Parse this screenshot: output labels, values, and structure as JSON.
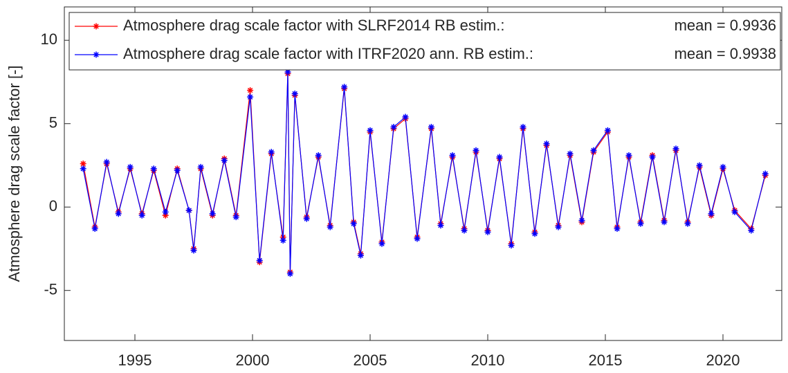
{
  "chart_data": {
    "type": "line",
    "y_label": "Atmosphere drag scale factor [-]",
    "xlim": [
      1992,
      2022.5
    ],
    "xticks": [
      1995,
      2000,
      2005,
      2010,
      2015,
      2020
    ],
    "ylim": [
      -8,
      12
    ],
    "yticks": [
      -5,
      0,
      5,
      10
    ],
    "legend": "top-left",
    "x": [
      1992.8,
      1993.3,
      1993.8,
      1994.3,
      1994.8,
      1995.3,
      1995.8,
      1996.3,
      1996.8,
      1997.3,
      1997.5,
      1997.8,
      1998.3,
      1998.8,
      1999.3,
      1999.9,
      2000.3,
      2000.8,
      2001.3,
      2001.5,
      2001.6,
      2001.8,
      2002.3,
      2002.8,
      2003.3,
      2003.9,
      2004.3,
      2004.6,
      2005.0,
      2005.5,
      2006.0,
      2006.5,
      2007.0,
      2007.6,
      2008.0,
      2008.5,
      2009.0,
      2009.5,
      2010.0,
      2010.5,
      2011.0,
      2011.5,
      2012.0,
      2012.5,
      2013.0,
      2013.5,
      2014.0,
      2014.5,
      2015.1,
      2015.5,
      2016.0,
      2016.5,
      2017.0,
      2017.5,
      2018.0,
      2018.5,
      2019.0,
      2019.5,
      2020.0,
      2020.5,
      2021.2,
      2021.8
    ],
    "series": [
      {
        "name": "Atmosphere drag scale factor with SLRF2014 RB estim.:",
        "mean_label": "mean = 0.9936",
        "color": "#ff0000",
        "values": [
          2.6,
          -1.2,
          2.6,
          -0.3,
          2.3,
          -0.4,
          2.2,
          -0.5,
          2.3,
          -0.2,
          -2.5,
          2.3,
          -0.5,
          2.9,
          -0.5,
          7.0,
          -3.3,
          3.2,
          -1.8,
          8.0,
          -3.9,
          6.7,
          -0.6,
          3.0,
          -1.1,
          7.1,
          -0.9,
          -2.8,
          4.5,
          -2.1,
          4.7,
          5.3,
          -1.8,
          4.7,
          -1.0,
          3.0,
          -1.3,
          3.3,
          -1.4,
          2.9,
          -2.2,
          4.7,
          -1.5,
          3.7,
          -1.1,
          3.1,
          -0.9,
          3.3,
          4.5,
          -1.2,
          3.0,
          -0.9,
          3.1,
          -0.8,
          3.4,
          -0.9,
          2.4,
          -0.5,
          2.3,
          -0.2,
          -1.3,
          1.9
        ]
      },
      {
        "name": "Atmosphere drag scale factor with ITRF2020 ann. RB estim.:",
        "mean_label": "mean = 0.9938",
        "color": "#0000ff",
        "values": [
          2.3,
          -1.3,
          2.7,
          -0.4,
          2.4,
          -0.5,
          2.3,
          -0.3,
          2.2,
          -0.2,
          -2.6,
          2.4,
          -0.4,
          2.8,
          -0.6,
          6.6,
          -3.2,
          3.3,
          -2.0,
          8.1,
          -4.0,
          6.8,
          -0.7,
          3.1,
          -1.2,
          7.2,
          -1.0,
          -2.9,
          4.6,
          -2.2,
          4.8,
          5.4,
          -1.9,
          4.8,
          -1.1,
          3.1,
          -1.4,
          3.4,
          -1.5,
          3.0,
          -2.3,
          4.8,
          -1.6,
          3.8,
          -1.2,
          3.2,
          -0.8,
          3.4,
          4.6,
          -1.3,
          3.1,
          -1.0,
          3.0,
          -0.9,
          3.5,
          -1.0,
          2.5,
          -0.4,
          2.4,
          -0.3,
          -1.4,
          2.0
        ]
      }
    ]
  }
}
